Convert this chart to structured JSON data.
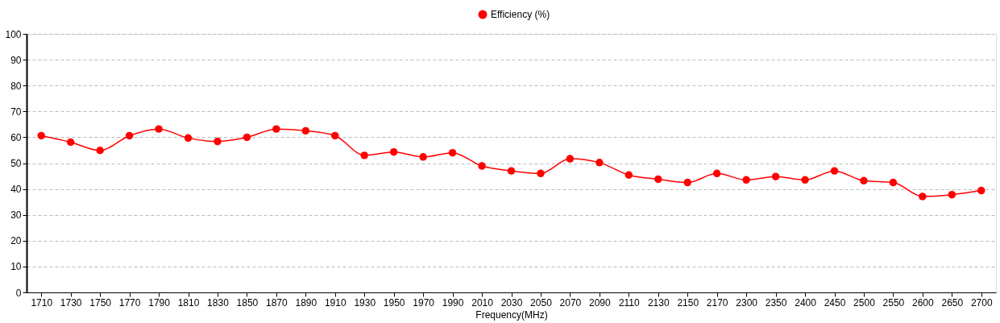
{
  "chart_data": {
    "type": "line",
    "xlabel": "Frequency(MHz)",
    "categories": [
      "1710",
      "1730",
      "1750",
      "1770",
      "1790",
      "1810",
      "1830",
      "1850",
      "1870",
      "1890",
      "1910",
      "1930",
      "1950",
      "1970",
      "1990",
      "2010",
      "2030",
      "2050",
      "2070",
      "2090",
      "2110",
      "2130",
      "2150",
      "2170",
      "2300",
      "2350",
      "2400",
      "2450",
      "2500",
      "2550",
      "2600",
      "2650",
      "2700"
    ],
    "series": [
      {
        "name": "Efficiency (%)",
        "color": "#ff0000",
        "values": [
          60.6,
          58.1,
          54.9,
          60.6,
          63.2,
          59.7,
          58.4,
          60.0,
          63.2,
          62.5,
          60.6,
          53.0,
          54.3,
          52.4,
          54.0,
          48.9,
          47.0,
          46.0,
          51.7,
          50.2,
          45.4,
          43.8,
          42.5,
          46.0,
          43.5,
          44.8,
          43.5,
          47.0,
          43.2,
          42.5,
          37.1,
          37.8,
          39.4
        ]
      }
    ],
    "ylim": [
      0,
      100
    ],
    "yticks": [
      0,
      10,
      20,
      30,
      40,
      50,
      60,
      70,
      80,
      90,
      100
    ],
    "grid": "y",
    "legend": "top",
    "marker": "circle",
    "line_style": "solid"
  }
}
